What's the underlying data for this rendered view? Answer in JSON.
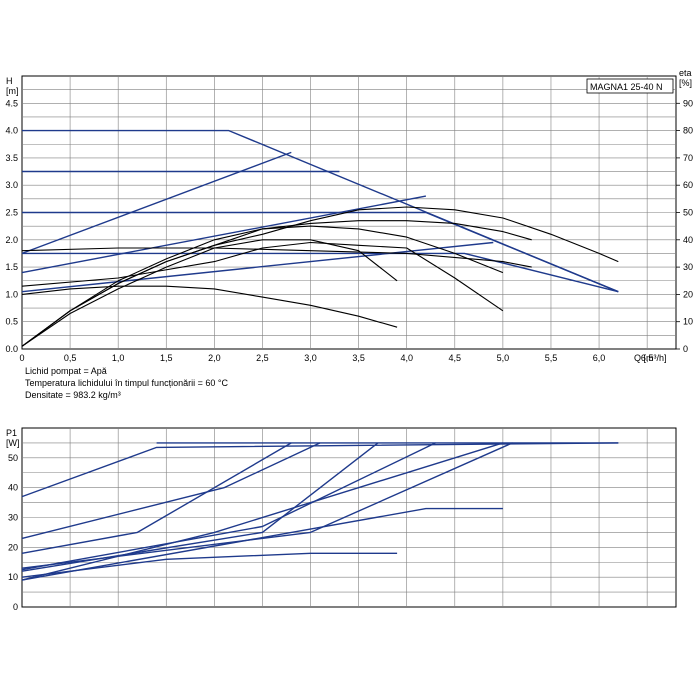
{
  "model_label": "MAGNA1 25-40 N",
  "info_lines": [
    "Lichid pompat = Apă",
    "Temperatura lichidului în timpul funcționării = 60 °C",
    "Densitate = 983.2 kg/m³"
  ],
  "colors": {
    "blue": "#1f3a8c",
    "black": "#000000",
    "grid": "#808080"
  },
  "chart_data": [
    {
      "type": "line",
      "title": "",
      "y_axis_label": [
        "H",
        "[m]"
      ],
      "y2_axis_label": [
        "eta",
        "[%]"
      ],
      "x_axis_label": "Q [m³/h]",
      "xlim": [
        0,
        6.8
      ],
      "ylim": [
        0,
        5
      ],
      "y2lim": [
        0,
        100
      ],
      "x_ticks": [
        "0",
        "0,5",
        "1,0",
        "1,5",
        "2,0",
        "2,5",
        "3,0",
        "3,5",
        "4,0",
        "4,5",
        "5,0",
        "5,5",
        "6,0",
        "6,5"
      ],
      "y_ticks": [
        "0.0",
        "0.5",
        "1.0",
        "1.5",
        "2.0",
        "2.5",
        "3.0",
        "3.5",
        "4.0",
        "4.5"
      ],
      "y2_ticks": [
        "0",
        "10",
        "20",
        "30",
        "40",
        "50",
        "60",
        "70",
        "80",
        "90"
      ],
      "grid": true,
      "series": [
        {
          "color": "blue",
          "points": [
            [
              0,
              4.0
            ],
            [
              2.15,
              4.0
            ],
            [
              6.2,
              1.05
            ]
          ]
        },
        {
          "color": "blue",
          "points": [
            [
              0,
              3.25
            ],
            [
              3.3,
              3.25
            ]
          ]
        },
        {
          "color": "blue",
          "points": [
            [
              0,
              2.5
            ],
            [
              4.2,
              2.5
            ],
            [
              6.2,
              1.05
            ]
          ]
        },
        {
          "color": "blue",
          "points": [
            [
              0,
              1.75
            ],
            [
              4.6,
              1.75
            ],
            [
              6.2,
              1.05
            ]
          ]
        },
        {
          "color": "blue",
          "points": [
            [
              0,
              1.75
            ],
            [
              2.8,
              3.6
            ]
          ]
        },
        {
          "color": "blue",
          "points": [
            [
              0,
              1.4
            ],
            [
              4.2,
              2.8
            ]
          ]
        },
        {
          "color": "blue",
          "points": [
            [
              0,
              1.05
            ],
            [
              4.9,
              1.95
            ]
          ]
        },
        {
          "color": "black",
          "points": [
            [
              0,
              0.05
            ],
            [
              0.5,
              0.7
            ],
            [
              1.0,
              1.2
            ],
            [
              1.5,
              1.6
            ],
            [
              2.0,
              1.9
            ],
            [
              2.5,
              2.1
            ],
            [
              3.0,
              2.35
            ],
            [
              3.5,
              2.55
            ],
            [
              4.0,
              2.6
            ],
            [
              4.5,
              2.55
            ],
            [
              5.0,
              2.4
            ],
            [
              5.5,
              2.1
            ],
            [
              6.0,
              1.75
            ],
            [
              6.2,
              1.6
            ]
          ]
        },
        {
          "color": "black",
          "points": [
            [
              0,
              0.05
            ],
            [
              0.5,
              0.7
            ],
            [
              1.0,
              1.2
            ],
            [
              1.5,
              1.6
            ],
            [
              2.0,
              1.9
            ],
            [
              2.5,
              2.2
            ],
            [
              3.0,
              2.3
            ],
            [
              3.5,
              2.35
            ],
            [
              4.0,
              2.35
            ],
            [
              4.5,
              2.3
            ],
            [
              5.0,
              2.15
            ],
            [
              5.3,
              2.0
            ]
          ]
        },
        {
          "color": "black",
          "points": [
            [
              0,
              0.05
            ],
            [
              0.5,
              0.7
            ],
            [
              1.0,
              1.25
            ],
            [
              1.5,
              1.65
            ],
            [
              2.0,
              2.0
            ],
            [
              2.5,
              2.2
            ],
            [
              3.0,
              2.25
            ],
            [
              3.5,
              2.2
            ],
            [
              4.0,
              2.05
            ],
            [
              4.5,
              1.75
            ],
            [
              5.0,
              1.4
            ]
          ]
        },
        {
          "color": "black",
          "points": [
            [
              0,
              0.05
            ],
            [
              0.5,
              0.65
            ],
            [
              1.0,
              1.1
            ],
            [
              1.5,
              1.5
            ],
            [
              2.0,
              1.85
            ],
            [
              2.5,
              2.0
            ],
            [
              3.0,
              2.0
            ],
            [
              3.5,
              1.8
            ],
            [
              3.9,
              1.25
            ]
          ]
        },
        {
          "color": "black",
          "points": [
            [
              0,
              1.0
            ],
            [
              0.5,
              1.1
            ],
            [
              1.0,
              1.15
            ],
            [
              1.5,
              1.15
            ],
            [
              2.0,
              1.1
            ],
            [
              2.5,
              0.95
            ],
            [
              3.0,
              0.8
            ],
            [
              3.5,
              0.6
            ],
            [
              3.9,
              0.4
            ]
          ]
        },
        {
          "color": "black",
          "points": [
            [
              0,
              1.15
            ],
            [
              1.0,
              1.3
            ],
            [
              2.0,
              1.6
            ],
            [
              2.5,
              1.85
            ],
            [
              3.0,
              1.95
            ],
            [
              3.5,
              1.9
            ],
            [
              4.0,
              1.85
            ],
            [
              4.5,
              1.3
            ],
            [
              5.0,
              0.7
            ]
          ]
        },
        {
          "color": "black",
          "points": [
            [
              0,
              1.8
            ],
            [
              1.0,
              1.85
            ],
            [
              2.0,
              1.85
            ],
            [
              3.0,
              1.8
            ],
            [
              4.0,
              1.75
            ],
            [
              5.0,
              1.6
            ],
            [
              5.3,
              1.5
            ]
          ]
        }
      ]
    },
    {
      "type": "line",
      "title": "",
      "y_axis_label": [
        "P1",
        "[W]"
      ],
      "xlim": [
        0,
        6.8
      ],
      "ylim": [
        0,
        60
      ],
      "y_ticks": [
        "0",
        "10",
        "20",
        "30",
        "40",
        "50"
      ],
      "grid": true,
      "series": [
        {
          "color": "blue",
          "points": [
            [
              0,
              37
            ],
            [
              1.4,
              53.5
            ],
            [
              6.2,
              55
            ]
          ]
        },
        {
          "color": "blue",
          "points": [
            [
              0,
              23
            ],
            [
              2.1,
              40
            ],
            [
              3.1,
              55
            ]
          ]
        },
        {
          "color": "blue",
          "points": [
            [
              0,
              18
            ],
            [
              1.2,
              25
            ],
            [
              2.8,
              55
            ]
          ]
        },
        {
          "color": "blue",
          "points": [
            [
              0,
              12.5
            ],
            [
              2.5,
              27
            ],
            [
              4.3,
              55
            ]
          ]
        },
        {
          "color": "blue",
          "points": [
            [
              0,
              12
            ],
            [
              2.5,
              25
            ],
            [
              3.7,
              55
            ]
          ]
        },
        {
          "color": "blue",
          "points": [
            [
              0,
              9
            ],
            [
              2.0,
              25
            ],
            [
              5.0,
              55
            ]
          ]
        },
        {
          "color": "blue",
          "points": [
            [
              0,
              9
            ],
            [
              4.2,
              33
            ],
            [
              5.0,
              33
            ]
          ]
        },
        {
          "color": "blue",
          "points": [
            [
              0,
              13
            ],
            [
              3.0,
              25
            ],
            [
              5.1,
              55
            ]
          ]
        },
        {
          "color": "blue",
          "points": [
            [
              0,
              10
            ],
            [
              1.5,
              16
            ],
            [
              3.0,
              18
            ],
            [
              3.9,
              18
            ]
          ]
        },
        {
          "color": "blue",
          "points": [
            [
              1.4,
              55
            ],
            [
              6.2,
              55
            ]
          ]
        }
      ]
    }
  ]
}
